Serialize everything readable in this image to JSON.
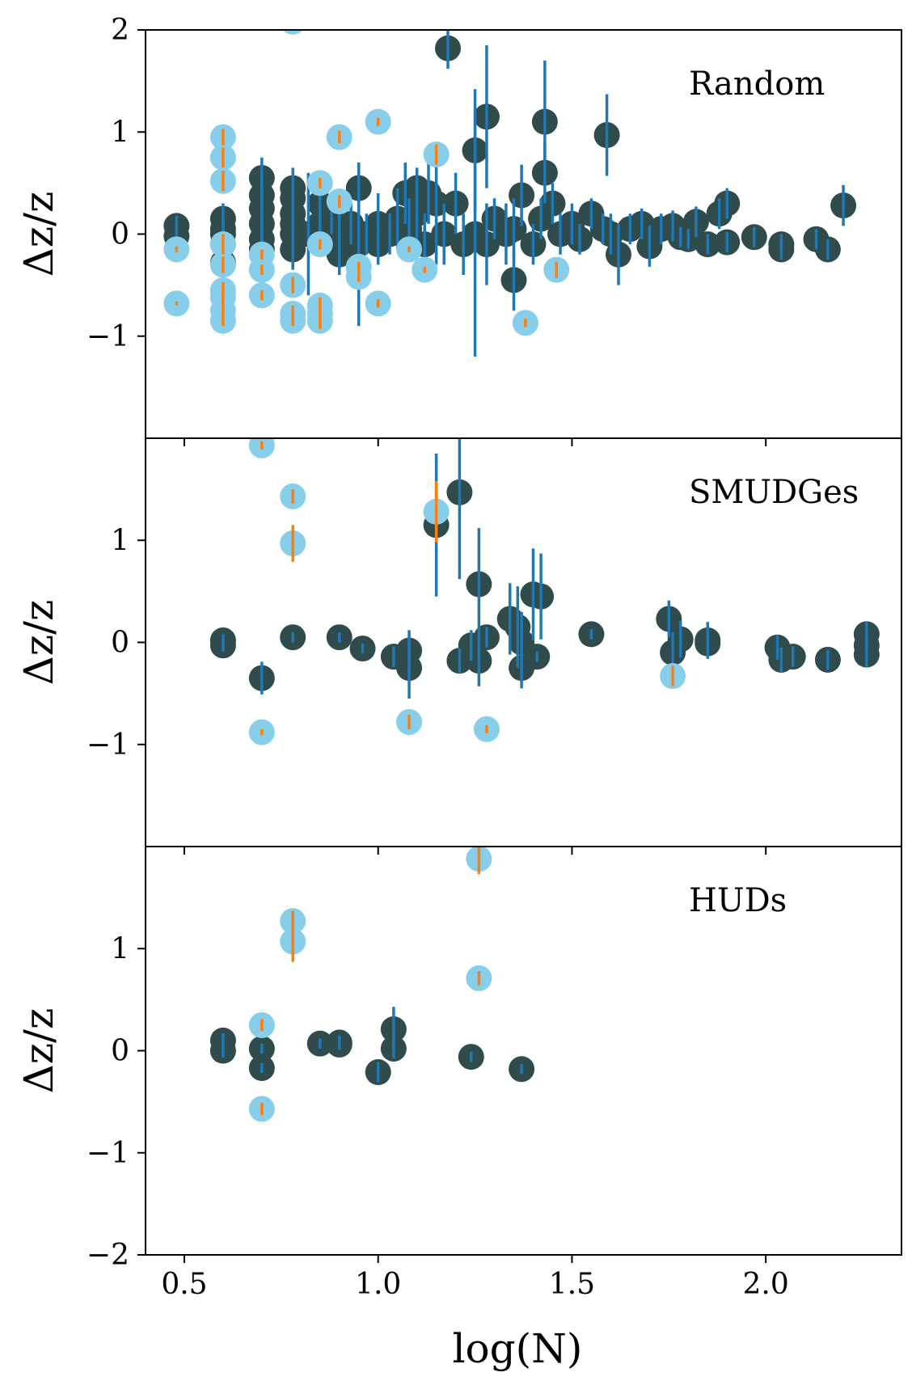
{
  "chart_data": {
    "type": "scatter",
    "xlabel": "log(N)",
    "xlim": [
      0.4,
      2.35
    ],
    "x_ticks": [
      0.5,
      1.0,
      1.5,
      2.0
    ],
    "x_tick_labels": [
      "0.5",
      "1.0",
      "1.5",
      "2.0"
    ],
    "colors": {
      "dark_point": "#2f4b4b",
      "light_point": "#87ceeb",
      "dark_err": "#1f77b4",
      "light_err": "#ff7f0e"
    },
    "panels": [
      {
        "title": "Random",
        "ylabel": "Δz/z",
        "ylim": [
          -2,
          2
        ],
        "y_ticks": [
          -1,
          0,
          1,
          2
        ],
        "y_tick_labels": [
          "−1",
          "0",
          "1",
          "2"
        ],
        "series": [
          {
            "kind": "dark",
            "points": [
              [
                0.48,
                0.08,
                0.1
              ],
              [
                0.48,
                -0.02,
                0.1
              ],
              [
                0.6,
                0.15,
                0.15
              ],
              [
                0.6,
                0.0,
                0.12
              ],
              [
                0.6,
                -0.1,
                0.15
              ],
              [
                0.6,
                -0.28,
                0.2
              ],
              [
                0.6,
                0.05,
                0.1
              ],
              [
                0.7,
                0.55,
                0.2
              ],
              [
                0.7,
                0.38,
                0.25
              ],
              [
                0.7,
                0.1,
                0.3
              ],
              [
                0.7,
                -0.05,
                0.2
              ],
              [
                0.7,
                -0.15,
                0.15
              ],
              [
                0.7,
                0.25,
                0.2
              ],
              [
                0.78,
                0.45,
                0.2
              ],
              [
                0.78,
                0.35,
                0.2
              ],
              [
                0.78,
                0.1,
                0.2
              ],
              [
                0.78,
                0.0,
                0.15
              ],
              [
                0.78,
                -0.15,
                0.2
              ],
              [
                0.78,
                0.2,
                0.25
              ],
              [
                0.82,
                0.0,
                0.6
              ],
              [
                0.85,
                0.3,
                0.2
              ],
              [
                0.85,
                0.1,
                0.2
              ],
              [
                0.85,
                -0.05,
                0.15
              ],
              [
                0.88,
                0.2,
                0.2
              ],
              [
                0.9,
                0.0,
                0.2
              ],
              [
                0.9,
                -0.2,
                0.2
              ],
              [
                0.93,
                0.1,
                0.2
              ],
              [
                0.95,
                0.45,
                0.25
              ],
              [
                0.95,
                -0.1,
                0.8
              ],
              [
                0.97,
                0.0,
                0.2
              ],
              [
                1.0,
                0.1,
                0.3
              ],
              [
                1.0,
                -0.1,
                0.2
              ],
              [
                1.03,
                0.0,
                0.2
              ],
              [
                1.05,
                0.15,
                0.3
              ],
              [
                1.07,
                0.4,
                0.3
              ],
              [
                1.08,
                0.05,
                0.3
              ],
              [
                1.1,
                0.45,
                0.2
              ],
              [
                1.1,
                0.2,
                0.4
              ],
              [
                1.12,
                -0.1,
                0.3
              ],
              [
                1.13,
                0.4,
                0.3
              ],
              [
                1.15,
                0.3,
                0.6
              ],
              [
                1.17,
                0.0,
                0.3
              ],
              [
                1.18,
                1.82,
                0.2
              ],
              [
                1.2,
                0.3,
                0.3
              ],
              [
                1.22,
                -0.1,
                0.3
              ],
              [
                1.25,
                0.82,
                0.6
              ],
              [
                1.25,
                0.0,
                1.2
              ],
              [
                1.28,
                1.15,
                0.7
              ],
              [
                1.28,
                -0.1,
                0.4
              ],
              [
                1.3,
                0.15,
                0.2
              ],
              [
                1.33,
                0.0,
                0.3
              ],
              [
                1.35,
                -0.45,
                0.3
              ],
              [
                1.35,
                0.05,
                0.3
              ],
              [
                1.37,
                0.38,
                0.3
              ],
              [
                1.4,
                -0.1,
                0.2
              ],
              [
                1.42,
                0.15,
                0.2
              ],
              [
                1.43,
                1.1,
                0.6
              ],
              [
                1.43,
                0.6,
                0.3
              ],
              [
                1.45,
                0.3,
                0.2
              ],
              [
                1.47,
                0.0,
                0.2
              ],
              [
                1.5,
                0.1,
                0.2
              ],
              [
                1.52,
                -0.05,
                0.15
              ],
              [
                1.55,
                0.2,
                0.15
              ],
              [
                1.58,
                0.05,
                0.15
              ],
              [
                1.59,
                0.97,
                0.4
              ],
              [
                1.6,
                0.0,
                0.2
              ],
              [
                1.62,
                -0.2,
                0.3
              ],
              [
                1.65,
                0.05,
                0.15
              ],
              [
                1.68,
                0.1,
                0.15
              ],
              [
                1.7,
                -0.12,
                0.2
              ],
              [
                1.73,
                0.05,
                0.15
              ],
              [
                1.76,
                0.08,
                0.15
              ],
              [
                1.78,
                -0.03,
                0.1
              ],
              [
                1.8,
                -0.05,
                0.1
              ],
              [
                1.82,
                0.12,
                0.15
              ],
              [
                1.85,
                -0.1,
                0.1
              ],
              [
                1.88,
                0.2,
                0.15
              ],
              [
                1.9,
                0.3,
                0.15
              ],
              [
                1.9,
                -0.08,
                0.1
              ],
              [
                1.97,
                -0.03,
                0.1
              ],
              [
                2.04,
                -0.1,
                0.1
              ],
              [
                2.04,
                -0.15,
                0.1
              ],
              [
                2.13,
                -0.05,
                0.1
              ],
              [
                2.16,
                -0.15,
                0.1
              ],
              [
                2.2,
                0.28,
                0.2
              ]
            ]
          },
          {
            "kind": "light",
            "points": [
              [
                0.48,
                -0.15,
                0.03
              ],
              [
                0.48,
                -0.68,
                0.02
              ],
              [
                0.6,
                0.95,
                0.08
              ],
              [
                0.6,
                0.75,
                0.1
              ],
              [
                0.6,
                0.52,
                0.1
              ],
              [
                0.6,
                -0.1,
                0.1
              ],
              [
                0.6,
                -0.3,
                0.08
              ],
              [
                0.6,
                -0.55,
                0.08
              ],
              [
                0.6,
                -0.62,
                0.08
              ],
              [
                0.6,
                -0.75,
                0.08
              ],
              [
                0.6,
                -0.85,
                0.05
              ],
              [
                0.7,
                -0.2,
                0.05
              ],
              [
                0.7,
                -0.35,
                0.05
              ],
              [
                0.7,
                -0.6,
                0.05
              ],
              [
                0.78,
                -0.5,
                0.08
              ],
              [
                0.78,
                -0.78,
                0.08
              ],
              [
                0.78,
                -0.85,
                0.05
              ],
              [
                0.78,
                2.08,
                0.02
              ],
              [
                0.85,
                0.5,
                0.05
              ],
              [
                0.85,
                -0.1,
                0.05
              ],
              [
                0.85,
                -0.7,
                0.08
              ],
              [
                0.85,
                -0.78,
                0.08
              ],
              [
                0.85,
                -0.85,
                0.08
              ],
              [
                0.9,
                0.95,
                0.06
              ],
              [
                0.9,
                0.32,
                0.06
              ],
              [
                0.95,
                -0.32,
                0.05
              ],
              [
                0.95,
                -0.42,
                0.05
              ],
              [
                1.0,
                1.1,
                0.04
              ],
              [
                1.0,
                -0.68,
                0.04
              ],
              [
                1.08,
                -0.15,
                0.03
              ],
              [
                1.12,
                -0.35,
                0.03
              ],
              [
                1.15,
                0.78,
                0.1
              ],
              [
                1.38,
                -0.87,
                0.04
              ],
              [
                1.46,
                -0.35,
                0.08
              ]
            ]
          }
        ]
      },
      {
        "title": "SMUDGes",
        "ylabel": "Δz/z",
        "ylim": [
          -2,
          2
        ],
        "y_ticks": [
          -1,
          0,
          1
        ],
        "y_tick_labels": [
          "−1",
          "0",
          "1"
        ],
        "series": [
          {
            "kind": "dark",
            "points": [
              [
                0.6,
                0.02,
                0.06
              ],
              [
                0.6,
                -0.03,
                0.06
              ],
              [
                0.7,
                -0.35,
                0.16
              ],
              [
                0.78,
                0.05,
                0.05
              ],
              [
                0.9,
                0.05,
                0.05
              ],
              [
                0.96,
                -0.06,
                0.05
              ],
              [
                1.04,
                -0.14,
                0.1
              ],
              [
                1.08,
                -0.08,
                0.2
              ],
              [
                1.08,
                -0.25,
                0.3
              ],
              [
                1.15,
                1.15,
                0.7
              ],
              [
                1.21,
                1.47,
                0.85
              ],
              [
                1.21,
                -0.18,
                0.12
              ],
              [
                1.24,
                -0.03,
                0.15
              ],
              [
                1.26,
                0.57,
                0.55
              ],
              [
                1.26,
                -0.18,
                0.25
              ],
              [
                1.28,
                0.05,
                0.1
              ],
              [
                1.34,
                0.23,
                0.35
              ],
              [
                1.36,
                0.15,
                0.4
              ],
              [
                1.37,
                0.0,
                0.3
              ],
              [
                1.37,
                -0.25,
                0.2
              ],
              [
                1.4,
                0.47,
                0.45
              ],
              [
                1.41,
                -0.14,
                0.05
              ],
              [
                1.42,
                0.45,
                0.42
              ],
              [
                1.55,
                0.08,
                0.05
              ],
              [
                1.75,
                0.23,
                0.18
              ],
              [
                1.76,
                -0.1,
                0.2
              ],
              [
                1.78,
                0.03,
                0.18
              ],
              [
                1.85,
                0.02,
                0.18
              ],
              [
                1.85,
                -0.01,
                0.15
              ],
              [
                2.03,
                -0.05,
                0.12
              ],
              [
                2.04,
                -0.17,
                0.12
              ],
              [
                2.07,
                -0.14,
                0.1
              ],
              [
                2.16,
                -0.17,
                0.1
              ],
              [
                2.26,
                0.08,
                0.12
              ],
              [
                2.26,
                -0.03,
                0.12
              ],
              [
                2.26,
                -0.12,
                0.12
              ]
            ]
          },
          {
            "kind": "light",
            "points": [
              [
                0.7,
                1.93,
                0.04
              ],
              [
                0.7,
                -0.88,
                0.03
              ],
              [
                0.78,
                1.43,
                0.07
              ],
              [
                0.78,
                0.97,
                0.18
              ],
              [
                1.08,
                -0.78,
                0.07
              ],
              [
                1.15,
                1.28,
                0.3
              ],
              [
                1.28,
                -0.85,
                0.04
              ],
              [
                1.76,
                -0.33,
                0.1
              ]
            ]
          }
        ]
      },
      {
        "title": "HUDs",
        "ylabel": "Δz/z",
        "ylim": [
          -2,
          2
        ],
        "y_ticks": [
          -2,
          -1,
          0,
          1
        ],
        "y_tick_labels": [
          "−2",
          "−1",
          "0",
          "1"
        ],
        "series": [
          {
            "kind": "dark",
            "points": [
              [
                0.6,
                0.1,
                0.07
              ],
              [
                0.6,
                0.0,
                0.07
              ],
              [
                0.7,
                0.02,
                0.05
              ],
              [
                0.7,
                -0.17,
                0.05
              ],
              [
                0.85,
                0.07,
                0.05
              ],
              [
                0.9,
                0.08,
                0.07
              ],
              [
                0.9,
                0.06,
                0.05
              ],
              [
                1.0,
                -0.21,
                0.1
              ],
              [
                1.04,
                0.21,
                0.22
              ],
              [
                1.04,
                0.02,
                0.1
              ],
              [
                1.24,
                -0.06,
                0.05
              ],
              [
                1.37,
                -0.18,
                0.05
              ]
            ]
          },
          {
            "kind": "light",
            "points": [
              [
                0.7,
                0.25,
                0.06
              ],
              [
                0.7,
                -0.57,
                0.06
              ],
              [
                0.78,
                1.27,
                0.1
              ],
              [
                0.78,
                1.07,
                0.2
              ],
              [
                1.26,
                1.88,
                0.15
              ],
              [
                1.26,
                0.71,
                0.07
              ]
            ]
          }
        ]
      }
    ]
  }
}
